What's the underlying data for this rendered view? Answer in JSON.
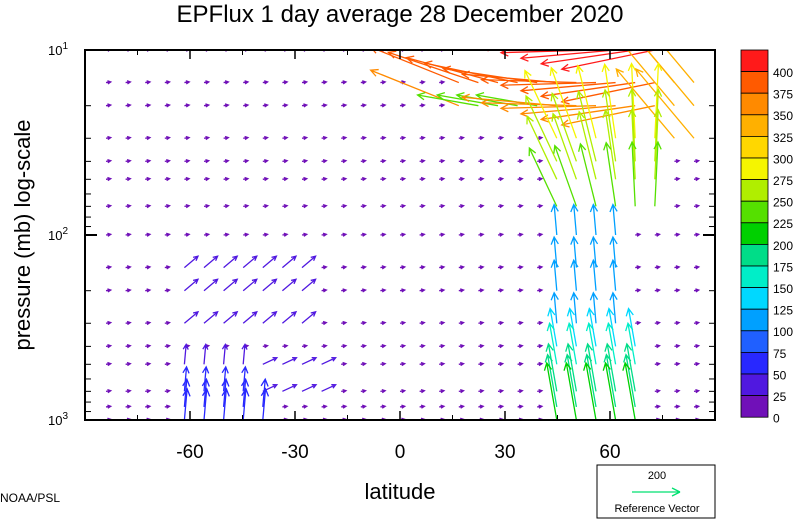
{
  "chart_data": {
    "type": "vector-field",
    "title": "EPFlux  1 day average  28 December 2020",
    "xlabel": "latitude",
    "ylabel": "pressure (mb)  log-scale",
    "x_range": [
      -90,
      90
    ],
    "y_range_mb": [
      1000,
      10
    ],
    "y_scale": "log",
    "x_ticks": [
      {
        "value": -60,
        "label": "-60"
      },
      {
        "value": -30,
        "label": "-30"
      },
      {
        "value": 0,
        "label": "0"
      },
      {
        "value": 30,
        "label": "30"
      },
      {
        "value": 60,
        "label": "60"
      }
    ],
    "y_ticks": [
      {
        "value": 10,
        "base": "10",
        "exp": "1"
      },
      {
        "value": 100,
        "base": "10",
        "exp": "2"
      },
      {
        "value": 1000,
        "base": "10",
        "exp": "3"
      }
    ],
    "colorbar": {
      "levels": [
        "400",
        "375",
        "350",
        "325",
        "300",
        "275",
        "250",
        "225",
        "200",
        "175",
        "150",
        "125",
        "100",
        "75",
        "50",
        "25",
        "0"
      ],
      "colors": [
        "#ff1a1a",
        "#ff5a00",
        "#ff8a00",
        "#ffb000",
        "#ffd700",
        "#f5f500",
        "#b0ee00",
        "#55e000",
        "#00d000",
        "#00dd88",
        "#00eec8",
        "#00d8ff",
        "#00a0ff",
        "#2060ff",
        "#2828ff",
        "#5018e0",
        "#7010b8"
      ]
    },
    "reference_vector": {
      "value": "200",
      "label": "Reference Vector"
    },
    "credit": "NOAA/PSL",
    "vector_levels_mb": [
      10,
      15,
      20,
      30,
      40,
      50,
      70,
      100,
      150,
      200,
      300,
      400,
      500,
      700,
      850,
      1000
    ]
  }
}
